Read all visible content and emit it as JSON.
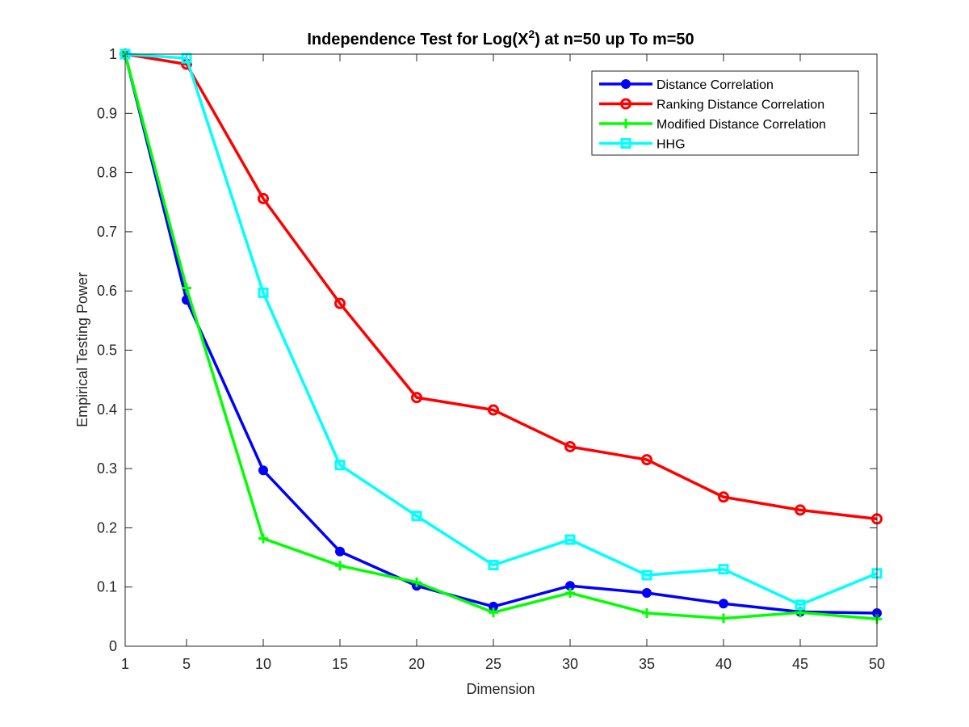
{
  "chart_data": {
    "type": "line",
    "title_main": "Independence Test for Log(X",
    "title_sup": "2",
    "title_rest": ") at n=50 up To m=50",
    "xlabel": "Dimension",
    "ylabel": "Empirical Testing Power",
    "xlim": [
      1,
      50
    ],
    "ylim": [
      0,
      1
    ],
    "x": [
      1,
      5,
      10,
      15,
      20,
      25,
      30,
      35,
      40,
      45,
      50
    ],
    "xticks": [
      "1",
      "5",
      "10",
      "15",
      "20",
      "25",
      "30",
      "35",
      "40",
      "45",
      "50"
    ],
    "yticks": [
      "0",
      "0.1",
      "0.2",
      "0.3",
      "0.4",
      "0.5",
      "0.6",
      "0.7",
      "0.8",
      "0.9",
      "1"
    ],
    "legend_position": "top-right",
    "grid": false,
    "series": [
      {
        "name": "Distance Correlation",
        "color": "#0000ff",
        "marker": "filled-circle",
        "values": [
          1.0,
          0.585,
          0.297,
          0.16,
          0.102,
          0.067,
          0.102,
          0.09,
          0.072,
          0.058,
          0.056
        ]
      },
      {
        "name": "Ranking Distance Correlation",
        "color": "#ff0000",
        "marker": "open-circle",
        "values": [
          1.0,
          0.983,
          0.756,
          0.579,
          0.42,
          0.399,
          0.337,
          0.315,
          0.252,
          0.23,
          0.215
        ]
      },
      {
        "name": "Modified Distance Correlation",
        "color": "#00ff00",
        "marker": "plus",
        "values": [
          1.0,
          0.605,
          0.182,
          0.136,
          0.108,
          0.057,
          0.09,
          0.056,
          0.047,
          0.057,
          0.046
        ]
      },
      {
        "name": "HHG",
        "color": "#00ffff",
        "marker": "open-square",
        "values": [
          1.0,
          0.993,
          0.597,
          0.306,
          0.22,
          0.137,
          0.18,
          0.12,
          0.13,
          0.07,
          0.123
        ]
      }
    ]
  }
}
